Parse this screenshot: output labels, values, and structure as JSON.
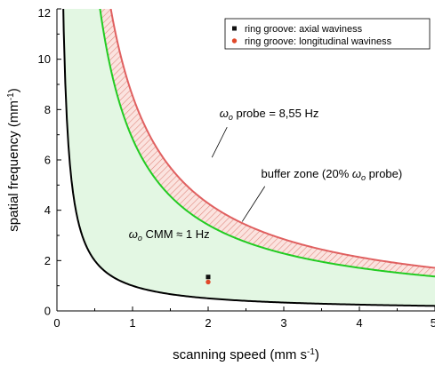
{
  "chart_data": {
    "type": "line",
    "xlabel": "scanning speed (mm s⁻¹)",
    "ylabel": "spatial frequency (mm⁻¹)",
    "xlim": [
      0,
      5
    ],
    "ylim": [
      0,
      12
    ],
    "x_ticks": [
      0,
      1,
      2,
      3,
      4,
      5
    ],
    "y_ticks": [
      0,
      2,
      4,
      6,
      8,
      10,
      12
    ],
    "grid": false,
    "legend_position": "top-right",
    "curves": [
      {
        "id": "cmm",
        "equation": "y = 1 / x",
        "color": "#000000"
      },
      {
        "id": "buffer",
        "equation": "y = 6.84 / x",
        "color": "#22cc22"
      },
      {
        "id": "probe",
        "equation": "y = 8.55 / x",
        "color": "#e06060"
      }
    ],
    "regions": [
      {
        "id": "green-zone",
        "between": [
          "cmm",
          "buffer"
        ],
        "color": "#e3f7e3"
      },
      {
        "id": "buffer-zone",
        "between": [
          "buffer",
          "probe"
        ],
        "color": "#f2b0a8",
        "pattern": "hatch"
      }
    ],
    "points": [
      {
        "series": "ring groove: axial waviness",
        "x": 2.0,
        "y": 1.35,
        "color": "#111111",
        "marker": "square"
      },
      {
        "series": "ring groove: longitudinal waviness",
        "x": 2.0,
        "y": 1.15,
        "color": "#e0482a",
        "marker": "circle"
      }
    ],
    "legend": [
      {
        "label": "ring groove: axial waviness",
        "color": "#111111",
        "marker": "square"
      },
      {
        "label": "ring groove: longitudinal waviness",
        "color": "#e0482a",
        "marker": "circle"
      }
    ],
    "annotations": [
      {
        "id": "probe",
        "text": "ωo probe = 8,55 Hz",
        "x": 2.15,
        "y": 7.7
      },
      {
        "id": "buffer",
        "text": "buffer zone (20% ωo probe)",
        "x": 2.7,
        "y": 5.3
      },
      {
        "id": "cmm",
        "text": "ωo CMM ≈ 1 Hz",
        "x": 0.95,
        "y": 2.9
      }
    ]
  }
}
